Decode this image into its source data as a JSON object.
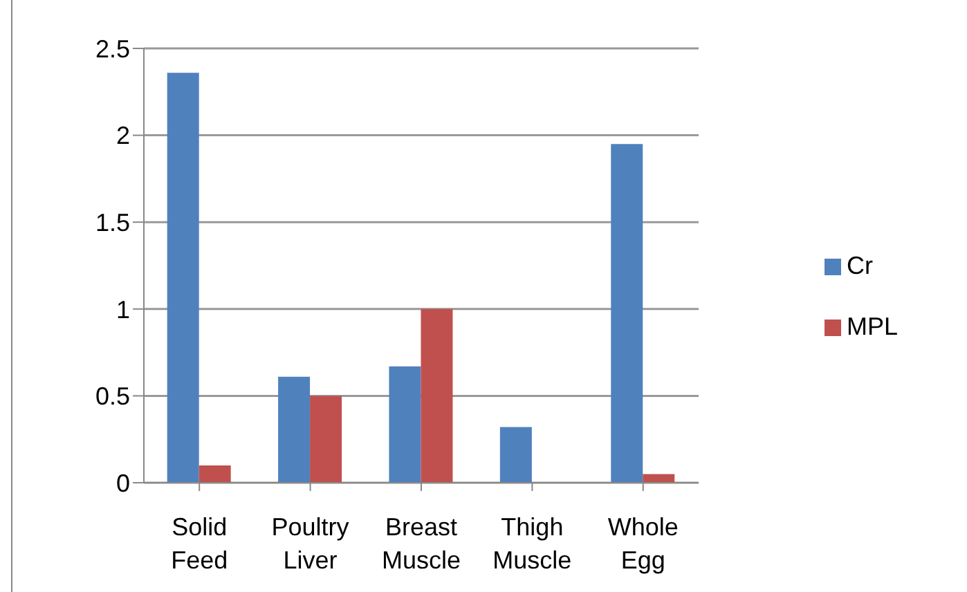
{
  "chart_data": {
    "type": "bar",
    "categories": [
      "Solid Feed",
      "Poultry Liver",
      "Breast Muscle",
      "Thigh Muscle",
      "Whole Egg"
    ],
    "series": [
      {
        "name": "Cr",
        "color": "#4f81bd",
        "values": [
          2.36,
          0.61,
          0.67,
          0.32,
          1.95
        ]
      },
      {
        "name": "MPL",
        "color": "#c0504d",
        "values": [
          0.1,
          0.5,
          1.0,
          0,
          0.05
        ]
      }
    ],
    "ylim": [
      0,
      2.5
    ],
    "yticks": [
      0,
      0.5,
      1,
      1.5,
      2,
      2.5
    ],
    "grid": "y",
    "legend": "right"
  }
}
